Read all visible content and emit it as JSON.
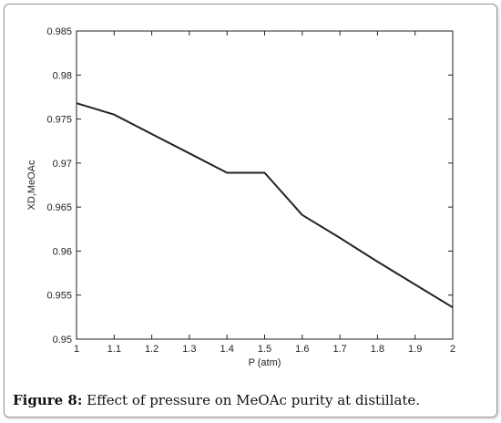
{
  "caption": {
    "label": "Figure 8:",
    "text": " Effect of pressure on MeOAc purity at distillate."
  },
  "chart_data": {
    "type": "line",
    "xlabel": "P (atm)",
    "ylabel": "XD,MeOAc",
    "xlim": [
      1,
      2
    ],
    "ylim": [
      0.95,
      0.985
    ],
    "xticks": [
      "1",
      "1.1",
      "1.2",
      "1.3",
      "1.4",
      "1.5",
      "1.6",
      "1.7",
      "1.8",
      "1.9",
      "2"
    ],
    "yticks": [
      "0.95",
      "0.955",
      "0.96",
      "0.965",
      "0.97",
      "0.975",
      "0.98",
      "0.985"
    ],
    "grid": false,
    "series": [
      {
        "x": [
          1.0,
          1.1,
          1.2,
          1.3,
          1.4,
          1.5,
          1.6,
          1.7,
          1.8,
          1.9,
          2.0
        ],
        "y": [
          0.9768,
          0.9755,
          0.9733,
          0.9711,
          0.9689,
          0.9689,
          0.9641,
          0.9615,
          0.9588,
          0.9562,
          0.9536
        ],
        "color": "#222222"
      }
    ]
  }
}
